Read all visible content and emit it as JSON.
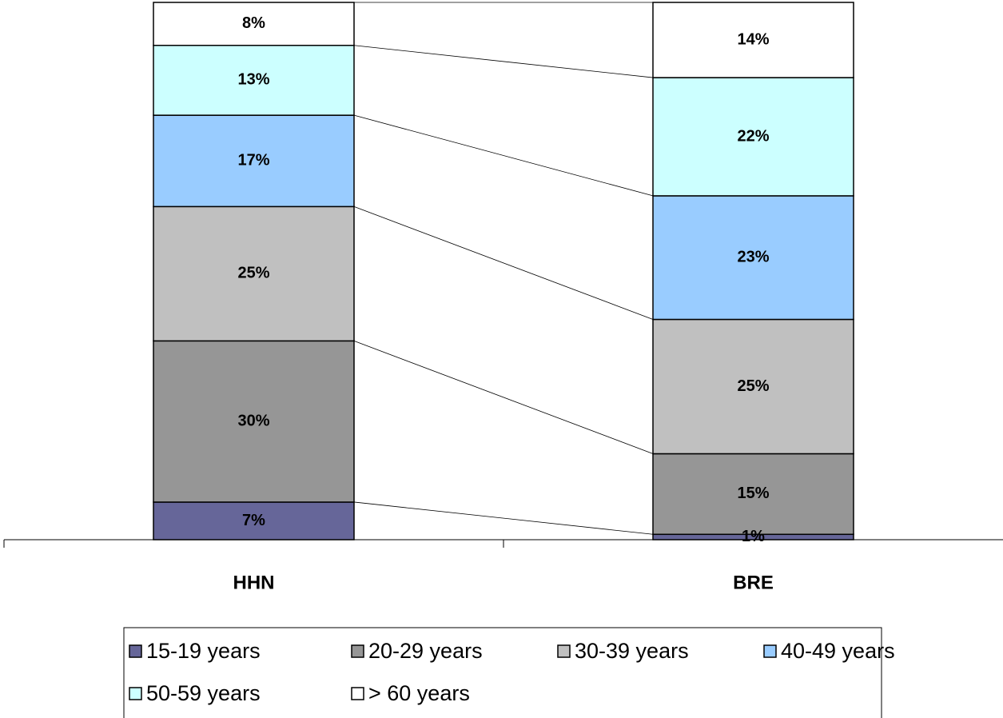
{
  "chart_data": {
    "type": "bar",
    "stacked": true,
    "categories": [
      "HHN",
      "BRE"
    ],
    "series": [
      {
        "name": "15-19 years",
        "color": "#666699",
        "values": [
          7,
          1
        ],
        "value_labels": [
          "7%",
          "1%"
        ]
      },
      {
        "name": "20-29 years",
        "color": "#969696",
        "values": [
          30,
          15
        ],
        "value_labels": [
          "30%",
          "15%"
        ]
      },
      {
        "name": "30-39 years",
        "color": "#c0c0c0",
        "values": [
          25,
          25
        ],
        "value_labels": [
          "25%",
          "25%"
        ]
      },
      {
        "name": "40-49 years",
        "color": "#99ccff",
        "values": [
          17,
          23
        ],
        "value_labels": [
          "17%",
          "23%"
        ]
      },
      {
        "name": "50-59 years",
        "color": "#ccffff",
        "values": [
          13,
          22
        ],
        "value_labels": [
          "13%",
          "22%"
        ]
      },
      {
        "name": "> 60 years",
        "color": "#ffffff",
        "values": [
          8,
          14
        ],
        "value_labels": [
          "8%",
          "14%"
        ]
      }
    ],
    "ylim": [
      0,
      100
    ],
    "legend": "bottom"
  }
}
